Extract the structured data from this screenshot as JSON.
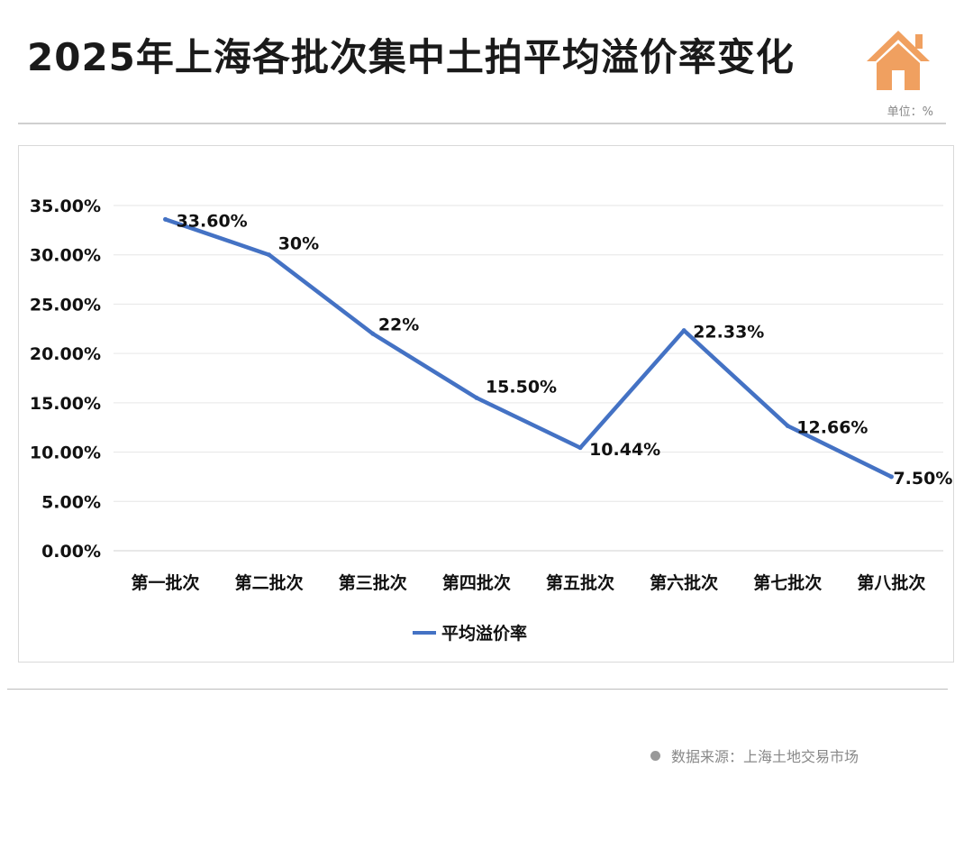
{
  "header": {
    "title": "2025年上海各批次集中土拍平均溢价率变化",
    "unit": "单位：%",
    "logo_icon": "house-icon",
    "logo_color": "#f0a060"
  },
  "footer": {
    "source": "数据来源：上海土地交易市场",
    "bullet_icon": "dot-icon"
  },
  "chart_data": {
    "type": "line",
    "categories": [
      "第一批次",
      "第二批次",
      "第三批次",
      "第四批次",
      "第五批次",
      "第六批次",
      "第七批次",
      "第八批次"
    ],
    "series": [
      {
        "name": "平均溢价率",
        "values": [
          33.6,
          30,
          22,
          15.5,
          10.44,
          22.33,
          12.66,
          7.5
        ],
        "labels": [
          "33.60%",
          "30%",
          "22%",
          "15.50%",
          "10.44%",
          "22.33%",
          "12.66%",
          "7.50%"
        ],
        "color": "#4472c4"
      }
    ],
    "y_ticks": [
      "0.00%",
      "5.00%",
      "10.00%",
      "15.00%",
      "20.00%",
      "25.00%",
      "30.00%",
      "35.00%"
    ],
    "ylim": [
      0,
      35
    ],
    "grid": true,
    "legend": "bottom"
  }
}
